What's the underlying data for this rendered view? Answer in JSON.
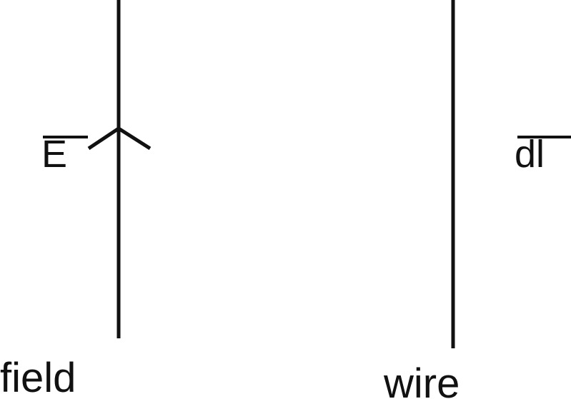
{
  "diagram": {
    "field_label": "field",
    "field_symbol": "E",
    "wire_label": "wire",
    "wire_symbol": "dl",
    "line_color": "#111111"
  }
}
